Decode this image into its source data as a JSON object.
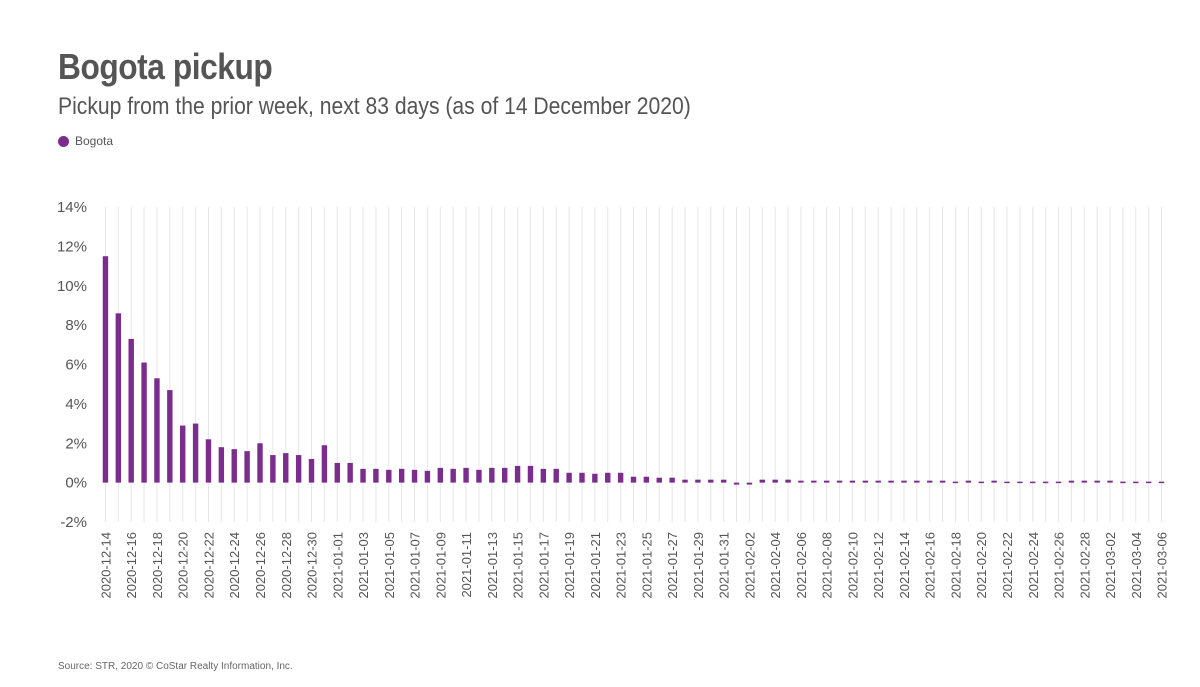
{
  "colors": {
    "bar": "#7b2d8e",
    "grid": "#e6e6e6",
    "text": "#555555"
  },
  "chart_data": {
    "type": "bar",
    "title": "Bogota pickup",
    "subtitle": "Pickup from the prior week, next 83 days (as of 14 December 2020)",
    "legend": {
      "position": "top-left",
      "entries": [
        "Bogota"
      ]
    },
    "series": [
      {
        "name": "Bogota",
        "color": "#7b2d8e"
      }
    ],
    "ylim": [
      -2,
      14
    ],
    "yticks": [
      -2,
      0,
      2,
      4,
      6,
      8,
      10,
      12,
      14
    ],
    "ytick_labels": [
      "-2%",
      "0%",
      "2%",
      "4%",
      "6%",
      "8%",
      "10%",
      "12%",
      "14%"
    ],
    "grid": true,
    "x_label_step": 2,
    "x": [
      "2020-12-14",
      "2020-12-15",
      "2020-12-16",
      "2020-12-17",
      "2020-12-18",
      "2020-12-19",
      "2020-12-20",
      "2020-12-21",
      "2020-12-22",
      "2020-12-23",
      "2020-12-24",
      "2020-12-25",
      "2020-12-26",
      "2020-12-27",
      "2020-12-28",
      "2020-12-29",
      "2020-12-30",
      "2020-12-31",
      "2021-01-01",
      "2021-01-02",
      "2021-01-03",
      "2021-01-04",
      "2021-01-05",
      "2021-01-06",
      "2021-01-07",
      "2021-01-08",
      "2021-01-09",
      "2021-01-10",
      "2021-01-11",
      "2021-01-12",
      "2021-01-13",
      "2021-01-14",
      "2021-01-15",
      "2021-01-16",
      "2021-01-17",
      "2021-01-18",
      "2021-01-19",
      "2021-01-20",
      "2021-01-21",
      "2021-01-22",
      "2021-01-23",
      "2021-01-24",
      "2021-01-25",
      "2021-01-26",
      "2021-01-27",
      "2021-01-28",
      "2021-01-29",
      "2021-01-30",
      "2021-01-31",
      "2021-02-01",
      "2021-02-02",
      "2021-02-03",
      "2021-02-04",
      "2021-02-05",
      "2021-02-06",
      "2021-02-07",
      "2021-02-08",
      "2021-02-09",
      "2021-02-10",
      "2021-02-11",
      "2021-02-12",
      "2021-02-13",
      "2021-02-14",
      "2021-02-15",
      "2021-02-16",
      "2021-02-17",
      "2021-02-18",
      "2021-02-19",
      "2021-02-20",
      "2021-02-21",
      "2021-02-22",
      "2021-02-23",
      "2021-02-24",
      "2021-02-25",
      "2021-02-26",
      "2021-02-27",
      "2021-02-28",
      "2021-03-01",
      "2021-03-02",
      "2021-03-03",
      "2021-03-04",
      "2021-03-05",
      "2021-03-06"
    ],
    "values": [
      11.5,
      8.6,
      7.3,
      6.1,
      5.3,
      4.7,
      2.9,
      3.0,
      2.2,
      1.8,
      1.7,
      1.6,
      2.0,
      1.4,
      1.5,
      1.4,
      1.2,
      1.9,
      1.0,
      1.0,
      0.7,
      0.7,
      0.65,
      0.7,
      0.65,
      0.6,
      0.75,
      0.7,
      0.75,
      0.65,
      0.75,
      0.75,
      0.85,
      0.85,
      0.7,
      0.7,
      0.5,
      0.5,
      0.45,
      0.5,
      0.5,
      0.3,
      0.3,
      0.25,
      0.25,
      0.15,
      0.15,
      0.15,
      0.15,
      -0.1,
      -0.1,
      0.15,
      0.15,
      0.15,
      0.1,
      0.1,
      0.1,
      0.1,
      0.1,
      0.1,
      0.1,
      0.1,
      0.1,
      0.1,
      0.1,
      0.1,
      0.05,
      0.1,
      0.05,
      0.1,
      0.05,
      0.05,
      0.05,
      0.05,
      0.05,
      0.1,
      0.1,
      0.1,
      0.1,
      0.05,
      0.05,
      0.05,
      0.05
    ]
  },
  "footer": {
    "source": "Source: STR, 2020 © CoStar Realty Information, Inc."
  }
}
